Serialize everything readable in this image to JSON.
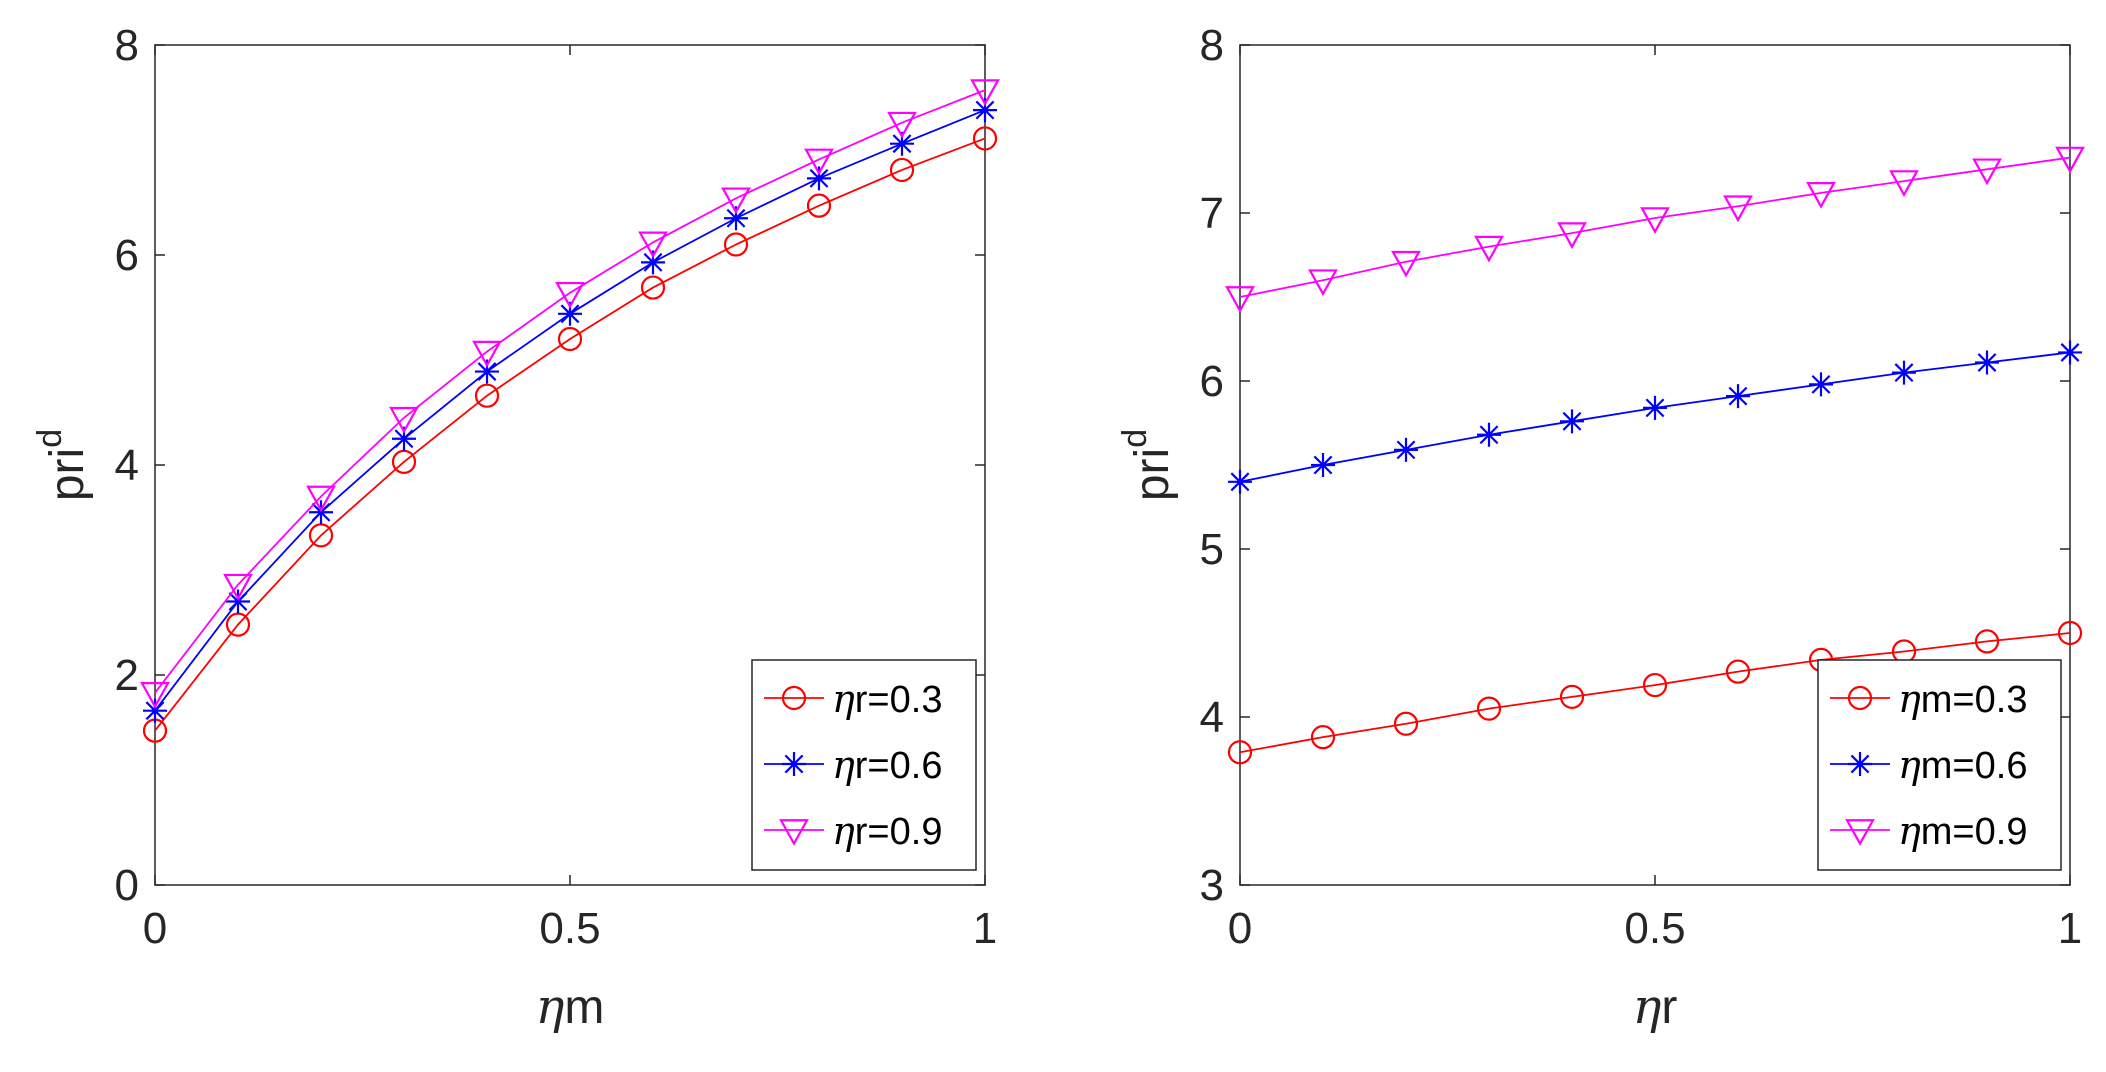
{
  "chart_data": [
    {
      "type": "line",
      "title": "",
      "xlabel": "ηm",
      "ylabel": "pri",
      "ylabel_superscript": "d",
      "xlim": [
        0,
        1
      ],
      "ylim": [
        0,
        8
      ],
      "x_ticks": [
        0,
        0.5,
        1
      ],
      "x_tick_labels": [
        "0",
        "0.5",
        "1"
      ],
      "y_ticks": [
        0,
        2,
        4,
        6,
        8
      ],
      "y_tick_labels": [
        "0",
        "2",
        "4",
        "6",
        "8"
      ],
      "grid": false,
      "legend_position": "bottom-right",
      "x": [
        0,
        0.1,
        0.2,
        0.3,
        0.4,
        0.5,
        0.6,
        0.7,
        0.8,
        0.9,
        1.0
      ],
      "series": [
        {
          "name": "ηr=0.3",
          "greek": "η",
          "rest": "r=0.3",
          "color": "#ff0000",
          "marker": "circle",
          "values": [
            1.47,
            2.48,
            3.33,
            4.03,
            4.66,
            5.2,
            5.69,
            6.1,
            6.47,
            6.81,
            7.11
          ]
        },
        {
          "name": "ηr=0.6",
          "greek": "η",
          "rest": "r=0.6",
          "color": "#0000ff",
          "marker": "asterisk",
          "values": [
            1.66,
            2.7,
            3.55,
            4.25,
            4.89,
            5.44,
            5.93,
            6.35,
            6.73,
            7.06,
            7.38
          ]
        },
        {
          "name": "ηr=0.9",
          "greek": "η",
          "rest": "r=0.9",
          "color": "#ff00ff",
          "marker": "triangle-down",
          "values": [
            1.83,
            2.86,
            3.7,
            4.45,
            5.08,
            5.64,
            6.12,
            6.54,
            6.91,
            7.26,
            7.57
          ]
        }
      ]
    },
    {
      "type": "line",
      "title": "",
      "xlabel": "ηr",
      "ylabel": "pri",
      "ylabel_superscript": "d",
      "xlim": [
        0,
        1
      ],
      "ylim": [
        3,
        8
      ],
      "x_ticks": [
        0,
        0.5,
        1
      ],
      "x_tick_labels": [
        "0",
        "0.5",
        "1"
      ],
      "y_ticks": [
        3,
        4,
        5,
        6,
        7,
        8
      ],
      "y_tick_labels": [
        "3",
        "4",
        "5",
        "6",
        "7",
        "8"
      ],
      "grid": false,
      "legend_position": "bottom-right",
      "x": [
        0,
        0.1,
        0.2,
        0.3,
        0.4,
        0.5,
        0.6,
        0.7,
        0.8,
        0.9,
        1.0
      ],
      "series": [
        {
          "name": "ηm=0.3",
          "greek": "η",
          "rest": "m=0.3",
          "color": "#ff0000",
          "marker": "circle",
          "values": [
            3.79,
            3.88,
            3.96,
            4.05,
            4.12,
            4.19,
            4.27,
            4.34,
            4.39,
            4.45,
            4.5
          ]
        },
        {
          "name": "ηm=0.6",
          "greek": "η",
          "rest": "m=0.6",
          "color": "#0000ff",
          "marker": "asterisk",
          "values": [
            5.4,
            5.5,
            5.59,
            5.68,
            5.76,
            5.84,
            5.91,
            5.98,
            6.05,
            6.11,
            6.17
          ]
        },
        {
          "name": "ηm=0.9",
          "greek": "η",
          "rest": "m=0.9",
          "color": "#ff00ff",
          "marker": "triangle-down",
          "values": [
            6.5,
            6.6,
            6.71,
            6.8,
            6.88,
            6.97,
            7.04,
            7.12,
            7.19,
            7.26,
            7.33
          ]
        }
      ]
    }
  ]
}
